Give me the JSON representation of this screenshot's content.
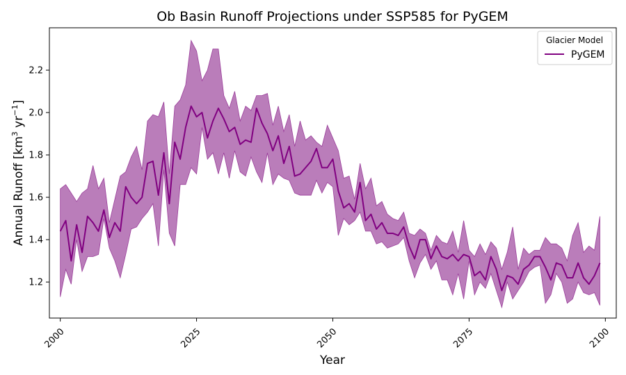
{
  "chart_data": {
    "type": "line",
    "title": "Ob Basin Runoff Projections under SSP585 for PyGEM",
    "xlabel": "Year",
    "ylabel_main": "Annual Runoff [km",
    "ylabel_sup1": "3",
    "ylabel_mid": " yr",
    "ylabel_sup2": "−1",
    "ylabel_end": "]",
    "xlim": [
      1998,
      2102
    ],
    "ylim": [
      1.03,
      2.4
    ],
    "xticks": [
      2000,
      2025,
      2050,
      2075,
      2100
    ],
    "yticks": [
      1.2,
      1.4,
      1.6,
      1.8,
      2.0,
      2.2
    ],
    "ytick_labels": [
      "1.2",
      "1.4",
      "1.6",
      "1.8",
      "2.0",
      "2.2"
    ],
    "legend": {
      "title": "Glacier Model",
      "placement": "top-right"
    },
    "colors": {
      "line": "#800080",
      "band": "#b676b6",
      "band_edge": "#9a3d9a"
    },
    "series": [
      {
        "name": "PyGEM",
        "x": [
          2000,
          2001,
          2002,
          2003,
          2004,
          2005,
          2006,
          2007,
          2008,
          2009,
          2010,
          2011,
          2012,
          2013,
          2014,
          2015,
          2016,
          2017,
          2018,
          2019,
          2020,
          2021,
          2022,
          2023,
          2024,
          2025,
          2026,
          2027,
          2028,
          2029,
          2030,
          2031,
          2032,
          2033,
          2034,
          2035,
          2036,
          2037,
          2038,
          2039,
          2040,
          2041,
          2042,
          2043,
          2044,
          2045,
          2046,
          2047,
          2048,
          2049,
          2050,
          2051,
          2052,
          2053,
          2054,
          2055,
          2056,
          2057,
          2058,
          2059,
          2060,
          2061,
          2062,
          2063,
          2064,
          2065,
          2066,
          2067,
          2068,
          2069,
          2070,
          2071,
          2072,
          2073,
          2074,
          2075,
          2076,
          2077,
          2078,
          2079,
          2080,
          2081,
          2082,
          2083,
          2084,
          2085,
          2086,
          2087,
          2088,
          2089,
          2090,
          2091,
          2092,
          2093,
          2094,
          2095,
          2096,
          2097,
          2098,
          2099
        ],
        "mean": [
          1.44,
          1.49,
          1.3,
          1.47,
          1.34,
          1.51,
          1.48,
          1.44,
          1.54,
          1.41,
          1.48,
          1.44,
          1.65,
          1.6,
          1.57,
          1.6,
          1.76,
          1.77,
          1.61,
          1.81,
          1.57,
          1.86,
          1.78,
          1.93,
          2.03,
          1.98,
          2.0,
          1.88,
          1.96,
          2.02,
          1.97,
          1.91,
          1.93,
          1.85,
          1.87,
          1.86,
          2.02,
          1.95,
          1.9,
          1.82,
          1.89,
          1.76,
          1.84,
          1.7,
          1.71,
          1.74,
          1.77,
          1.83,
          1.74,
          1.74,
          1.78,
          1.63,
          1.55,
          1.57,
          1.53,
          1.67,
          1.49,
          1.52,
          1.45,
          1.48,
          1.43,
          1.43,
          1.42,
          1.46,
          1.37,
          1.31,
          1.4,
          1.4,
          1.31,
          1.37,
          1.32,
          1.31,
          1.33,
          1.3,
          1.33,
          1.32,
          1.23,
          1.25,
          1.21,
          1.32,
          1.26,
          1.16,
          1.23,
          1.22,
          1.19,
          1.26,
          1.28,
          1.32,
          1.32,
          1.27,
          1.21,
          1.29,
          1.28,
          1.22,
          1.22,
          1.29,
          1.22,
          1.19,
          1.23,
          1.29
        ],
        "upper": [
          1.64,
          1.66,
          1.62,
          1.58,
          1.62,
          1.64,
          1.75,
          1.64,
          1.69,
          1.48,
          1.59,
          1.7,
          1.72,
          1.79,
          1.84,
          1.73,
          1.96,
          1.99,
          1.98,
          2.05,
          1.71,
          2.03,
          2.06,
          2.13,
          2.34,
          2.29,
          2.15,
          2.2,
          2.3,
          2.3,
          2.08,
          2.02,
          2.1,
          1.96,
          2.03,
          2.01,
          2.08,
          2.08,
          2.09,
          1.94,
          2.03,
          1.91,
          1.99,
          1.84,
          1.96,
          1.87,
          1.89,
          1.86,
          1.84,
          1.94,
          1.88,
          1.82,
          1.69,
          1.7,
          1.59,
          1.76,
          1.64,
          1.69,
          1.56,
          1.58,
          1.52,
          1.5,
          1.49,
          1.53,
          1.43,
          1.42,
          1.45,
          1.43,
          1.35,
          1.42,
          1.39,
          1.38,
          1.44,
          1.34,
          1.49,
          1.35,
          1.32,
          1.38,
          1.33,
          1.39,
          1.36,
          1.26,
          1.34,
          1.46,
          1.26,
          1.36,
          1.33,
          1.35,
          1.35,
          1.41,
          1.38,
          1.38,
          1.36,
          1.3,
          1.42,
          1.48,
          1.34,
          1.37,
          1.35,
          1.51
        ],
        "lower": [
          1.13,
          1.26,
          1.19,
          1.4,
          1.25,
          1.32,
          1.32,
          1.33,
          1.5,
          1.36,
          1.3,
          1.22,
          1.33,
          1.45,
          1.46,
          1.5,
          1.53,
          1.57,
          1.37,
          1.73,
          1.43,
          1.37,
          1.66,
          1.66,
          1.74,
          1.71,
          1.93,
          1.78,
          1.81,
          1.71,
          1.81,
          1.69,
          1.82,
          1.72,
          1.7,
          1.79,
          1.72,
          1.67,
          1.81,
          1.66,
          1.71,
          1.69,
          1.68,
          1.62,
          1.61,
          1.61,
          1.61,
          1.68,
          1.62,
          1.67,
          1.65,
          1.42,
          1.5,
          1.47,
          1.49,
          1.53,
          1.44,
          1.44,
          1.38,
          1.39,
          1.36,
          1.37,
          1.38,
          1.41,
          1.3,
          1.22,
          1.29,
          1.33,
          1.26,
          1.3,
          1.21,
          1.21,
          1.14,
          1.24,
          1.12,
          1.3,
          1.14,
          1.2,
          1.17,
          1.24,
          1.16,
          1.08,
          1.2,
          1.12,
          1.16,
          1.2,
          1.25,
          1.27,
          1.28,
          1.1,
          1.14,
          1.24,
          1.2,
          1.1,
          1.12,
          1.2,
          1.15,
          1.14,
          1.15,
          1.09
        ]
      }
    ]
  }
}
